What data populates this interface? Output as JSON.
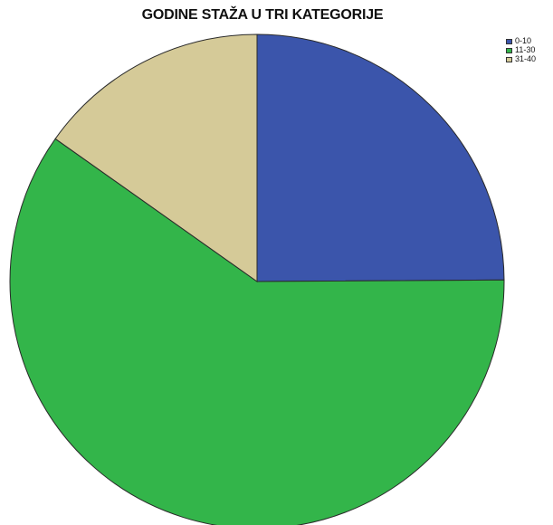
{
  "chart_data": {
    "type": "pie",
    "title": "GODINE STAŽA U TRI KATEGORIJE",
    "categories": [
      "0-10",
      "11-30",
      "31-40"
    ],
    "values": [
      24.9,
      59.9,
      15.2
    ],
    "colors": [
      "#3b55ab",
      "#33b54a",
      "#d5ca98"
    ],
    "start": "12 o'clock, clockwise",
    "legend_position": "top-right"
  }
}
